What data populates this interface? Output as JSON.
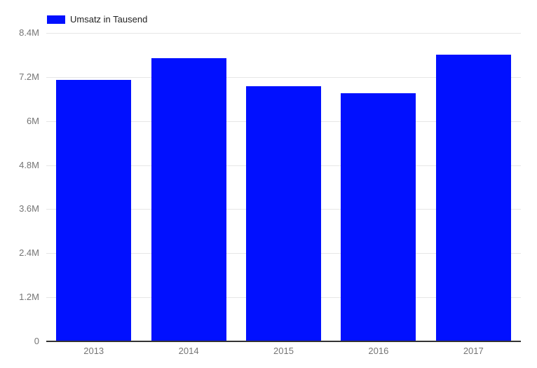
{
  "chart_data": {
    "type": "bar",
    "title": "",
    "categories": [
      "2013",
      "2014",
      "2015",
      "2016",
      "2017"
    ],
    "series": [
      {
        "name": "Umsatz in Tausend",
        "color": "#0110ff",
        "values": [
          7120000,
          7710000,
          6940000,
          6760000,
          7810000
        ]
      }
    ],
    "xlabel": "",
    "ylabel": "",
    "ylim": [
      0,
      8400000
    ],
    "yticks": [
      {
        "value": 0,
        "label": "0"
      },
      {
        "value": 1200000,
        "label": "1.2M"
      },
      {
        "value": 2400000,
        "label": "2.4M"
      },
      {
        "value": 3600000,
        "label": "3.6M"
      },
      {
        "value": 4800000,
        "label": "4.8M"
      },
      {
        "value": 6000000,
        "label": "6M"
      },
      {
        "value": 7200000,
        "label": "7.2M"
      },
      {
        "value": 8400000,
        "label": "8.4M"
      }
    ],
    "grid": true,
    "legend": {
      "label": "Umsatz in Tausend",
      "color": "#0110ff",
      "position": "top-left"
    },
    "style": {
      "background": "#ffffff",
      "grid_color": "#e6e6e6",
      "baseline_color": "#333333",
      "axis_label_color": "#757575",
      "legend_text_color": "#222222"
    }
  }
}
